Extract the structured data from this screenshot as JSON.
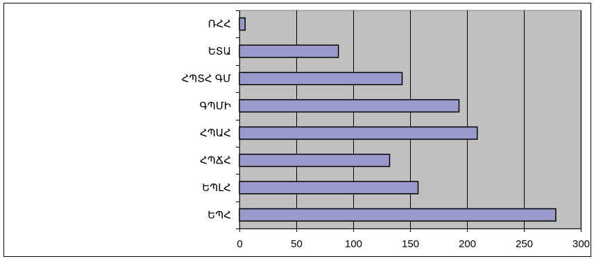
{
  "chart_data": {
    "type": "bar",
    "orientation": "horizontal",
    "title": "",
    "xlabel": "",
    "ylabel": "",
    "categories": [
      "ՌՀՀ",
      "ԵՏԱ",
      "ՀՊՏՀ ԳՄ",
      "ԳՊՄԻ",
      "ՀՊԱՀ",
      "ՀՊՃՀ",
      "ԵՊԼՀ",
      "ԵՊՀ"
    ],
    "values": [
      5,
      87,
      143,
      193,
      209,
      132,
      157,
      278
    ],
    "xlim": [
      0,
      300
    ],
    "xticks": [
      0,
      50,
      100,
      150,
      200,
      250,
      300
    ],
    "grid": true,
    "legend": "none",
    "colors": {
      "bar_fill": "#9999cc",
      "bar_stroke": "#000000",
      "plot_background": "#c0c0c0",
      "gridline": "#000000"
    }
  }
}
